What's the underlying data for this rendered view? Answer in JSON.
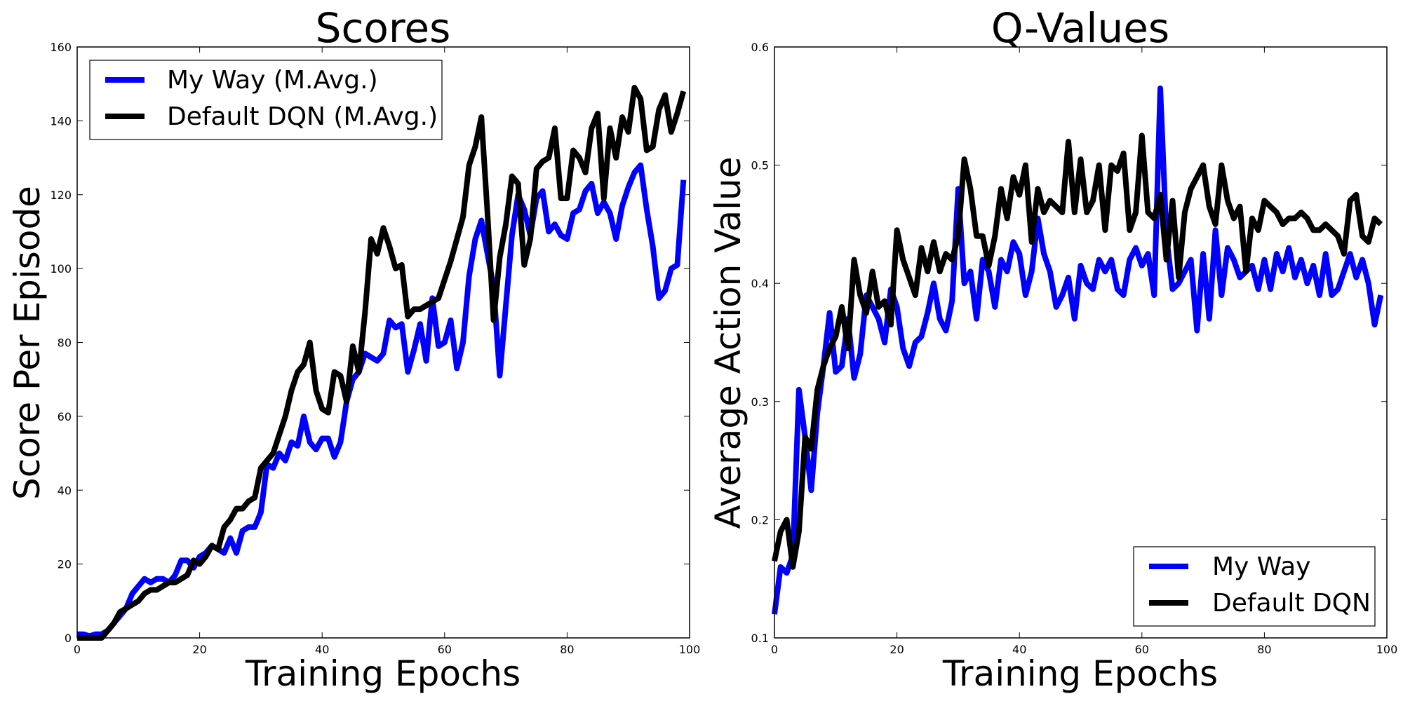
{
  "chart_data": [
    {
      "type": "line",
      "title": "Scores",
      "xlabel": "Training Epochs",
      "ylabel": "Score Per Episode",
      "xlim": [
        0,
        100
      ],
      "ylim": [
        0,
        160
      ],
      "xticks": [
        0,
        20,
        40,
        60,
        80,
        100
      ],
      "yticks": [
        0,
        20,
        40,
        60,
        80,
        100,
        120,
        140,
        160
      ],
      "grid": false,
      "legend": "top-left",
      "series": [
        {
          "name": "My Way (M.Avg.)",
          "color": "#0000ff",
          "x": [
            0,
            1,
            2,
            3,
            4,
            5,
            6,
            7,
            8,
            9,
            10,
            11,
            12,
            13,
            14,
            15,
            16,
            17,
            18,
            19,
            20,
            21,
            22,
            23,
            24,
            25,
            26,
            27,
            28,
            29,
            30,
            31,
            32,
            33,
            34,
            35,
            36,
            37,
            38,
            39,
            40,
            41,
            42,
            43,
            44,
            45,
            46,
            47,
            48,
            49,
            50,
            51,
            52,
            53,
            54,
            55,
            56,
            57,
            58,
            59,
            60,
            61,
            62,
            63,
            64,
            65,
            66,
            67,
            68,
            69,
            70,
            71,
            72,
            73,
            74,
            75,
            76,
            77,
            78,
            79,
            80,
            81,
            82,
            83,
            84,
            85,
            86,
            87,
            88,
            89,
            90,
            91,
            92,
            93,
            94,
            95,
            96,
            97,
            98,
            99
          ],
          "y": [
            1,
            1,
            0.5,
            1,
            1,
            2,
            4,
            6,
            8,
            12,
            14,
            16,
            15,
            16,
            16,
            15,
            17,
            21,
            21,
            19,
            22,
            23,
            25,
            24,
            23,
            27,
            23,
            29,
            30,
            30,
            34,
            47,
            46,
            50,
            48,
            53,
            52,
            60,
            53,
            51,
            54,
            54,
            49,
            53,
            64,
            70,
            72,
            77,
            76,
            75,
            77,
            86,
            84,
            85,
            72,
            78,
            85,
            75,
            92,
            79,
            80,
            86,
            73,
            80,
            98,
            108,
            113,
            104,
            95,
            71,
            90,
            109,
            120,
            116,
            109,
            119,
            121,
            110,
            112,
            109,
            108,
            115,
            116,
            121,
            123,
            115,
            118,
            115,
            108,
            117,
            122,
            126,
            128,
            116,
            106,
            92,
            94,
            100,
            101,
            124
          ]
        },
        {
          "name": "Default DQN (M.Avg.)",
          "color": "#000000",
          "x": [
            0,
            1,
            2,
            3,
            4,
            5,
            6,
            7,
            8,
            9,
            10,
            11,
            12,
            13,
            14,
            15,
            16,
            17,
            18,
            19,
            20,
            21,
            22,
            23,
            24,
            25,
            26,
            27,
            28,
            29,
            30,
            31,
            32,
            33,
            34,
            35,
            36,
            37,
            38,
            39,
            40,
            41,
            42,
            43,
            44,
            45,
            46,
            47,
            48,
            49,
            50,
            51,
            52,
            53,
            54,
            55,
            56,
            57,
            58,
            59,
            60,
            61,
            62,
            63,
            64,
            65,
            66,
            67,
            68,
            69,
            70,
            71,
            72,
            73,
            74,
            75,
            76,
            77,
            78,
            79,
            80,
            81,
            82,
            83,
            84,
            85,
            86,
            87,
            88,
            89,
            90,
            91,
            92,
            93,
            94,
            95,
            96,
            97,
            98,
            99
          ],
          "y": [
            0,
            0,
            0,
            0,
            0,
            2,
            4,
            7,
            8,
            9,
            10,
            12,
            13,
            13,
            14,
            15,
            15,
            16,
            17,
            21,
            20,
            22,
            25,
            24,
            30,
            32,
            35,
            35,
            37,
            38,
            46,
            48,
            50,
            55,
            60,
            67,
            72,
            74,
            80,
            67,
            62,
            61,
            72,
            71,
            64,
            79,
            72,
            88,
            108,
            104,
            111,
            106,
            100,
            101,
            87,
            89,
            89,
            90,
            91,
            92,
            97,
            102,
            108,
            114,
            128,
            133,
            141,
            115,
            86,
            103,
            112,
            125,
            123,
            101,
            108,
            127,
            129,
            130,
            138,
            119,
            119,
            132,
            130,
            126,
            138,
            142,
            119,
            138,
            130,
            141,
            137,
            149,
            146,
            132,
            133,
            143,
            147,
            137,
            142,
            148
          ]
        }
      ]
    },
    {
      "type": "line",
      "title": "Q-Values",
      "xlabel": "Training Epochs",
      "ylabel": "Average Action Value",
      "xlim": [
        0,
        100
      ],
      "ylim": [
        0.1,
        0.6
      ],
      "xticks": [
        0,
        20,
        40,
        60,
        80,
        100
      ],
      "yticks": [
        0.1,
        0.2,
        0.3,
        0.4,
        0.5,
        0.6
      ],
      "grid": false,
      "legend": "bottom-right",
      "series": [
        {
          "name": "My Way",
          "color": "#0000ff",
          "x": [
            0,
            1,
            2,
            3,
            4,
            5,
            6,
            7,
            8,
            9,
            10,
            11,
            12,
            13,
            14,
            15,
            16,
            17,
            18,
            19,
            20,
            21,
            22,
            23,
            24,
            25,
            26,
            27,
            28,
            29,
            30,
            31,
            32,
            33,
            34,
            35,
            36,
            37,
            38,
            39,
            40,
            41,
            42,
            43,
            44,
            45,
            46,
            47,
            48,
            49,
            50,
            51,
            52,
            53,
            54,
            55,
            56,
            57,
            58,
            59,
            60,
            61,
            62,
            63,
            64,
            65,
            66,
            67,
            68,
            69,
            70,
            71,
            72,
            73,
            74,
            75,
            76,
            77,
            78,
            79,
            80,
            81,
            82,
            83,
            84,
            85,
            86,
            87,
            88,
            89,
            90,
            91,
            92,
            93,
            94,
            95,
            96,
            97,
            98,
            99
          ],
          "y": [
            0.12,
            0.16,
            0.155,
            0.17,
            0.31,
            0.27,
            0.225,
            0.29,
            0.33,
            0.375,
            0.325,
            0.33,
            0.37,
            0.32,
            0.34,
            0.39,
            0.38,
            0.37,
            0.35,
            0.395,
            0.38,
            0.345,
            0.33,
            0.35,
            0.355,
            0.375,
            0.4,
            0.37,
            0.36,
            0.385,
            0.48,
            0.4,
            0.41,
            0.37,
            0.42,
            0.41,
            0.38,
            0.42,
            0.41,
            0.435,
            0.425,
            0.39,
            0.41,
            0.455,
            0.425,
            0.41,
            0.38,
            0.39,
            0.405,
            0.37,
            0.415,
            0.4,
            0.395,
            0.42,
            0.41,
            0.42,
            0.395,
            0.39,
            0.42,
            0.43,
            0.415,
            0.425,
            0.39,
            0.565,
            0.44,
            0.395,
            0.4,
            0.41,
            0.42,
            0.36,
            0.425,
            0.37,
            0.445,
            0.39,
            0.43,
            0.42,
            0.405,
            0.41,
            0.415,
            0.395,
            0.42,
            0.395,
            0.425,
            0.41,
            0.43,
            0.405,
            0.42,
            0.4,
            0.415,
            0.39,
            0.425,
            0.39,
            0.395,
            0.41,
            0.425,
            0.405,
            0.42,
            0.4,
            0.365,
            0.39
          ]
        },
        {
          "name": "Default DQN",
          "color": "#000000",
          "x": [
            0,
            1,
            2,
            3,
            4,
            5,
            6,
            7,
            8,
            9,
            10,
            11,
            12,
            13,
            14,
            15,
            16,
            17,
            18,
            19,
            20,
            21,
            22,
            23,
            24,
            25,
            26,
            27,
            28,
            29,
            30,
            31,
            32,
            33,
            34,
            35,
            36,
            37,
            38,
            39,
            40,
            41,
            42,
            43,
            44,
            45,
            46,
            47,
            48,
            49,
            50,
            51,
            52,
            53,
            54,
            55,
            56,
            57,
            58,
            59,
            60,
            61,
            62,
            63,
            64,
            65,
            66,
            67,
            68,
            69,
            70,
            71,
            72,
            73,
            74,
            75,
            76,
            77,
            78,
            79,
            80,
            81,
            82,
            83,
            84,
            85,
            86,
            87,
            88,
            89,
            90,
            91,
            92,
            93,
            94,
            95,
            96,
            97,
            98,
            99
          ],
          "y": [
            0.165,
            0.19,
            0.2,
            0.16,
            0.19,
            0.27,
            0.26,
            0.31,
            0.33,
            0.345,
            0.355,
            0.38,
            0.345,
            0.42,
            0.39,
            0.375,
            0.41,
            0.38,
            0.385,
            0.365,
            0.445,
            0.42,
            0.405,
            0.39,
            0.43,
            0.41,
            0.435,
            0.41,
            0.425,
            0.42,
            0.44,
            0.505,
            0.48,
            0.44,
            0.44,
            0.415,
            0.44,
            0.48,
            0.455,
            0.49,
            0.475,
            0.5,
            0.435,
            0.48,
            0.46,
            0.47,
            0.465,
            0.46,
            0.52,
            0.46,
            0.505,
            0.46,
            0.47,
            0.5,
            0.445,
            0.5,
            0.495,
            0.51,
            0.445,
            0.46,
            0.525,
            0.46,
            0.455,
            0.475,
            0.42,
            0.47,
            0.405,
            0.46,
            0.48,
            0.49,
            0.5,
            0.465,
            0.45,
            0.5,
            0.47,
            0.455,
            0.465,
            0.41,
            0.455,
            0.445,
            0.47,
            0.465,
            0.46,
            0.45,
            0.455,
            0.455,
            0.46,
            0.455,
            0.445,
            0.445,
            0.45,
            0.445,
            0.44,
            0.425,
            0.47,
            0.475,
            0.44,
            0.435,
            0.455,
            0.45
          ]
        }
      ]
    }
  ]
}
